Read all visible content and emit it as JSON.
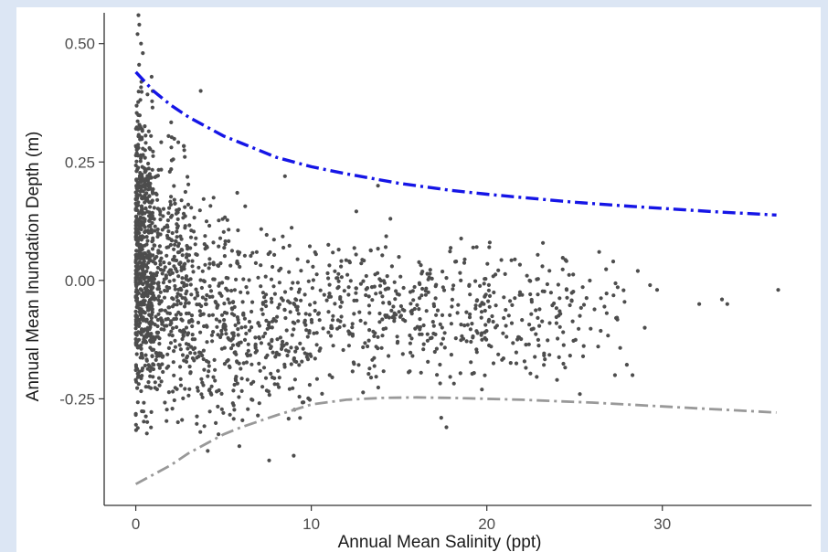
{
  "chart_data": {
    "type": "scatter",
    "title": "",
    "xlabel": "Annual Mean Salinity (ppt)",
    "ylabel": "Annual Mean Inundation Depth (m)",
    "xlim": [
      -1.8,
      38.5
    ],
    "ylim": [
      -0.475,
      0.565
    ],
    "x_ticks": [
      0,
      10,
      20,
      30
    ],
    "x_tick_labels": [
      "0",
      "10",
      "20",
      "30"
    ],
    "y_ticks": [
      -0.25,
      0,
      0.25,
      0.5
    ],
    "y_tick_labels": [
      "-0.25",
      "0.00",
      "0.25",
      "0.50"
    ],
    "grid": false,
    "legend": "none",
    "point_color": "#4d4d4d",
    "series": [
      {
        "kind": "points",
        "note_points": "dense cloud of ~2000 observations, summarized by bands below plus notable outliers",
        "bands": [
          {
            "x": [
              0.0,
              1.0
            ],
            "y": [
              -0.33,
              0.46
            ],
            "n": 620
          },
          {
            "x": [
              1.0,
              3.0
            ],
            "y": [
              -0.32,
              0.36
            ],
            "n": 330
          },
          {
            "x": [
              3.0,
              6.0
            ],
            "y": [
              -0.33,
              0.22
            ],
            "n": 260
          },
          {
            "x": [
              6.0,
              10.0
            ],
            "y": [
              -0.3,
              0.16
            ],
            "n": 220
          },
          {
            "x": [
              10.0,
              15.0
            ],
            "y": [
              -0.25,
              0.16
            ],
            "n": 190
          },
          {
            "x": [
              15.0,
              20.0
            ],
            "y": [
              -0.24,
              0.15
            ],
            "n": 170
          },
          {
            "x": [
              20.0,
              25.0
            ],
            "y": [
              -0.22,
              0.13
            ],
            "n": 130
          },
          {
            "x": [
              25.0,
              28.0
            ],
            "y": [
              -0.2,
              0.09
            ],
            "n": 30
          }
        ],
        "outliers": [
          {
            "x": 0.15,
            "y": 0.56
          },
          {
            "x": 0.2,
            "y": 0.54
          },
          {
            "x": 0.1,
            "y": 0.52
          },
          {
            "x": 0.3,
            "y": 0.5
          },
          {
            "x": 0.4,
            "y": 0.48
          },
          {
            "x": 3.7,
            "y": 0.4
          },
          {
            "x": 0.9,
            "y": 0.43
          },
          {
            "x": 8.5,
            "y": 0.22
          },
          {
            "x": 13.8,
            "y": 0.2
          },
          {
            "x": 4.1,
            "y": -0.36
          },
          {
            "x": 5.9,
            "y": -0.35
          },
          {
            "x": 7.6,
            "y": -0.38
          },
          {
            "x": 9.0,
            "y": -0.37
          },
          {
            "x": 17.7,
            "y": -0.31
          },
          {
            "x": 17.4,
            "y": -0.29
          },
          {
            "x": 28.6,
            "y": 0.02
          },
          {
            "x": 29.3,
            "y": -0.01
          },
          {
            "x": 29.7,
            "y": -0.02
          },
          {
            "x": 29.0,
            "y": -0.1
          },
          {
            "x": 28.3,
            "y": -0.2
          },
          {
            "x": 27.3,
            "y": -0.2
          },
          {
            "x": 32.1,
            "y": -0.05
          },
          {
            "x": 33.4,
            "y": -0.04
          },
          {
            "x": 33.7,
            "y": -0.05
          },
          {
            "x": 36.6,
            "y": -0.02
          },
          {
            "x": 25.3,
            "y": -0.24
          },
          {
            "x": 24.0,
            "y": -0.21
          },
          {
            "x": 26.4,
            "y": 0.06
          },
          {
            "x": 27.2,
            "y": 0.04
          }
        ]
      },
      {
        "kind": "line",
        "color": "#1515e6",
        "dash": "dash-dot",
        "x": [
          0,
          0.5,
          1,
          2,
          3,
          4,
          5,
          6,
          8,
          10,
          12,
          15,
          18,
          20,
          22,
          25,
          28,
          30,
          33,
          36.5
        ],
        "y": [
          0.44,
          0.42,
          0.4,
          0.37,
          0.345,
          0.325,
          0.305,
          0.29,
          0.26,
          0.24,
          0.225,
          0.205,
          0.19,
          0.182,
          0.175,
          0.165,
          0.157,
          0.152,
          0.145,
          0.138
        ]
      },
      {
        "kind": "line",
        "color": "#999999",
        "dash": "dash-dot",
        "x": [
          0,
          1,
          2,
          3,
          4,
          5,
          6,
          8,
          10,
          12,
          14,
          16,
          18,
          20,
          22,
          24,
          26,
          28,
          30,
          32,
          34,
          36.5
        ],
        "y": [
          -0.43,
          -0.41,
          -0.39,
          -0.365,
          -0.345,
          -0.325,
          -0.31,
          -0.285,
          -0.262,
          -0.252,
          -0.248,
          -0.247,
          -0.248,
          -0.25,
          -0.252,
          -0.255,
          -0.258,
          -0.262,
          -0.266,
          -0.27,
          -0.274,
          -0.279
        ]
      }
    ]
  }
}
